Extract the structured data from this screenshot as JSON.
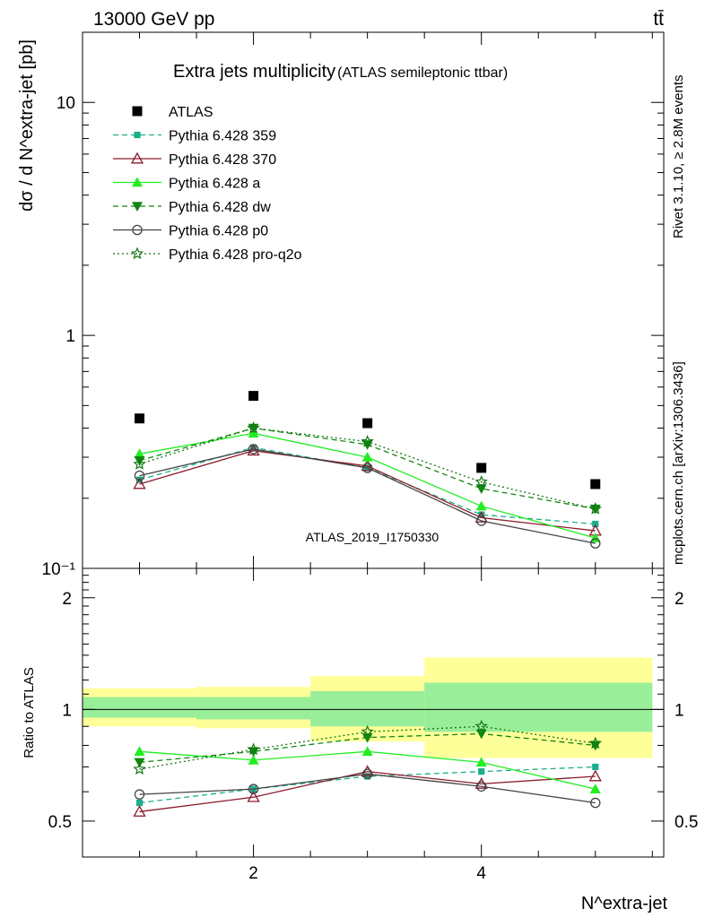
{
  "header": {
    "energy": "13000 GeV pp",
    "process": "tt̄",
    "side_top": "Rivet 3.1.10, ≥ 2.8M events",
    "side_bottom": "mcplots.cern.ch [arXiv:1306.3436]"
  },
  "chart_data": [
    {
      "type": "line",
      "title": "Extra jets multiplicity",
      "subtitle": "(ATLAS semileptonic ttbar)",
      "ylabel": "dσ / d N^extra-jet [pb]",
      "yscale": "log",
      "ylim": [
        0.1,
        20
      ],
      "xlim": [
        0.5,
        5.6
      ],
      "y_tick_labels": [
        "10⁻¹",
        "1",
        "10"
      ],
      "watermark": "ATLAS_2019_I1750330",
      "x": [
        1,
        2,
        3,
        4,
        5
      ],
      "series": [
        {
          "name": "ATLAS",
          "values": [
            0.44,
            0.55,
            0.42,
            0.27,
            0.23
          ],
          "color": "#000000",
          "marker": "square",
          "dash": "none"
        },
        {
          "name": "Pythia 6.428 359",
          "values": [
            0.24,
            0.33,
            0.27,
            0.17,
            0.155
          ],
          "color": "#1aaf8a",
          "marker": "smallsquare",
          "dash": "dashed"
        },
        {
          "name": "Pythia 6.428 370",
          "values": [
            0.23,
            0.32,
            0.275,
            0.165,
            0.145
          ],
          "color": "#8b1a2b",
          "marker": "triangle-open",
          "dash": "solid"
        },
        {
          "name": "Pythia 6.428 a",
          "values": [
            0.31,
            0.38,
            0.3,
            0.185,
            0.135
          ],
          "color": "#22ee22",
          "marker": "triangle",
          "dash": "solid"
        },
        {
          "name": "Pythia 6.428 dw",
          "values": [
            0.29,
            0.4,
            0.34,
            0.22,
            0.18
          ],
          "color": "#118811",
          "marker": "triangle-down",
          "dash": "dashed"
        },
        {
          "name": "Pythia 6.428 p0",
          "values": [
            0.25,
            0.325,
            0.27,
            0.16,
            0.128
          ],
          "color": "#444444",
          "marker": "circle-open",
          "dash": "solid"
        },
        {
          "name": "Pythia 6.428 pro-q2o",
          "values": [
            0.28,
            0.4,
            0.35,
            0.235,
            0.18
          ],
          "color": "#117711",
          "marker": "star",
          "dash": "dotted"
        }
      ]
    },
    {
      "type": "line",
      "ylabel": "Ratio to ATLAS",
      "xlabel": "N^extra-jet",
      "ylim": [
        0.4,
        2.4
      ],
      "xlim": [
        0.5,
        5.6
      ],
      "x_ticks": [
        2,
        4
      ],
      "y_ticks": [
        0.5,
        1,
        2
      ],
      "bands": [
        {
          "x0": 0.5,
          "x1": 1.5,
          "outer": [
            0.9,
            1.14
          ],
          "inner": [
            0.95,
            1.08
          ]
        },
        {
          "x0": 1.5,
          "x1": 2.5,
          "outer": [
            0.89,
            1.15
          ],
          "inner": [
            0.94,
            1.08
          ]
        },
        {
          "x0": 2.5,
          "x1": 3.5,
          "outer": [
            0.82,
            1.23
          ],
          "inner": [
            0.9,
            1.12
          ]
        },
        {
          "x0": 3.5,
          "x1": 5.5,
          "outer": [
            0.74,
            1.38
          ],
          "inner": [
            0.87,
            1.18
          ]
        }
      ],
      "x": [
        1,
        2,
        3,
        4,
        5
      ],
      "series": [
        {
          "name": "Pythia 6.428 359",
          "values": [
            0.56,
            0.61,
            0.66,
            0.68,
            0.7
          ],
          "color": "#1aaf8a",
          "marker": "smallsquare",
          "dash": "dashed"
        },
        {
          "name": "Pythia 6.428 370",
          "values": [
            0.53,
            0.58,
            0.68,
            0.63,
            0.66
          ],
          "color": "#8b1a2b",
          "marker": "triangle-open",
          "dash": "solid"
        },
        {
          "name": "Pythia 6.428 a",
          "values": [
            0.77,
            0.73,
            0.77,
            0.72,
            0.61
          ],
          "color": "#22ee22",
          "marker": "triangle",
          "dash": "solid"
        },
        {
          "name": "Pythia 6.428 dw",
          "values": [
            0.72,
            0.77,
            0.84,
            0.86,
            0.8
          ],
          "color": "#118811",
          "marker": "triangle-down",
          "dash": "dashed"
        },
        {
          "name": "Pythia 6.428 p0",
          "values": [
            0.59,
            0.61,
            0.67,
            0.62,
            0.56
          ],
          "color": "#444444",
          "marker": "circle-open",
          "dash": "solid"
        },
        {
          "name": "Pythia 6.428 pro-q2o",
          "values": [
            0.69,
            0.78,
            0.87,
            0.9,
            0.81
          ],
          "color": "#117711",
          "marker": "star",
          "dash": "dotted"
        }
      ]
    }
  ]
}
